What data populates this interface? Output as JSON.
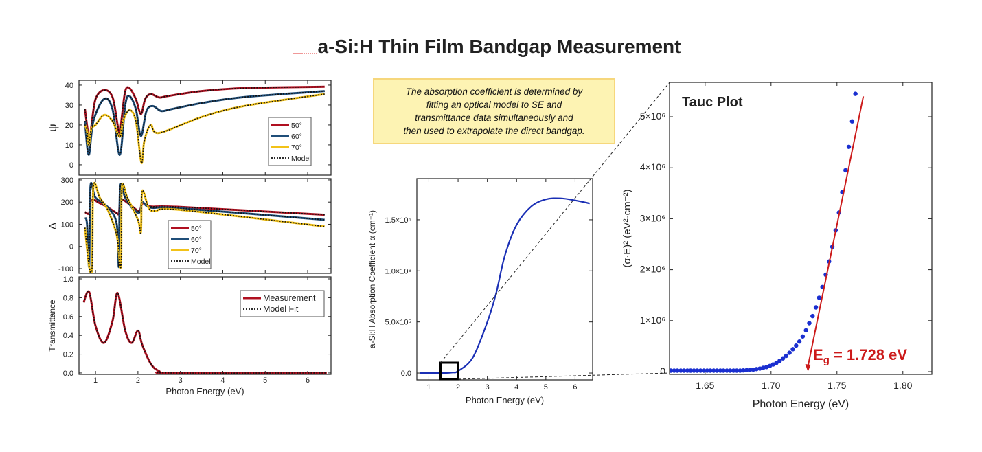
{
  "title": "a-Si:H Thin Film Bandgap Measurement",
  "note": [
    "The absorption coefficient is determined by",
    "fitting an optical model to SE and",
    "transmittance data simultaneously and",
    "then used to extrapolate the direct bandgap."
  ],
  "colors": {
    "c50": "#b01020",
    "c60": "#1f4e79",
    "c70": "#f2c218",
    "model": "#111111",
    "absorption": "#1a2fb5",
    "tauc_points": "#1a2fd0",
    "fit": "#cc1a1a",
    "note_bg": "#fdf3b3"
  },
  "chart_data": [
    {
      "type": "line",
      "title": "",
      "ylabel": "ψ",
      "xlabel": "",
      "xlim": [
        0.61,
        6.55
      ],
      "ylim": [
        -5.2,
        42.4
      ],
      "yticks": [
        "0",
        "10",
        "20",
        "30",
        "40"
      ],
      "ytick_values": [
        0,
        10,
        20,
        30,
        40
      ],
      "legend": [
        "50°",
        "60°",
        "70°",
        "Model"
      ],
      "legend_position": "right",
      "series": [
        {
          "name": "50°",
          "color": "c50",
          "x": [
            0.75,
            0.85,
            0.9,
            1.0,
            1.2,
            1.4,
            1.52,
            1.57,
            1.62,
            1.7,
            1.8,
            1.95,
            2.07,
            2.17,
            2.3,
            2.5,
            2.7,
            3.5,
            4.5,
            6.4
          ],
          "y": [
            28,
            13,
            19,
            33,
            37.5,
            34,
            20,
            15,
            24,
            37,
            38.5,
            33,
            25.5,
            33,
            35.5,
            33.8,
            34.5,
            37,
            38.5,
            39.2
          ]
        },
        {
          "name": "60°",
          "color": "c60",
          "x": [
            0.75,
            0.84,
            0.95,
            1.2,
            1.4,
            1.57,
            1.7,
            1.8,
            1.95,
            2.07,
            2.2,
            2.35,
            2.55,
            2.8,
            3.5,
            4.5,
            6.4
          ],
          "y": [
            22,
            5,
            22,
            33,
            28,
            5,
            30,
            34.5,
            28,
            14.5,
            27,
            29.5,
            27,
            28,
            31,
            34,
            37
          ]
        },
        {
          "name": "70°",
          "color": "c70",
          "x": [
            0.75,
            0.8,
            0.84,
            0.9,
            1.0,
            1.2,
            1.4,
            1.57,
            1.65,
            1.8,
            1.95,
            2.08,
            2.15,
            2.3,
            2.5,
            3.5,
            4.5,
            6.4
          ],
          "y": [
            20,
            17,
            10,
            18,
            20,
            25,
            22,
            14,
            22,
            27.5,
            22,
            1,
            12,
            20,
            16,
            24,
            29.5,
            35.5
          ]
        }
      ]
    },
    {
      "type": "line",
      "title": "",
      "ylabel": "Δ",
      "xlabel": "",
      "xlim": [
        0.61,
        6.55
      ],
      "ylim": [
        -121.7,
        306
      ],
      "yticks": [
        "-100",
        "0",
        "100",
        "200",
        "300"
      ],
      "ytick_values": [
        -100,
        0,
        100,
        200,
        300
      ],
      "legend": [
        "50°",
        "60°",
        "70°",
        "Model"
      ],
      "legend_position": "center",
      "series": [
        {
          "name": "50°",
          "color": "c50",
          "x": [
            0.75,
            0.85,
            0.9,
            1.1,
            1.3,
            1.5,
            1.55,
            1.6,
            1.8,
            2.0,
            2.05,
            2.12,
            2.3,
            3.0,
            6.4
          ],
          "y": [
            155,
            150,
            210,
            195,
            175,
            150,
            150,
            210,
            190,
            160,
            165,
            195,
            180,
            178,
            143
          ]
        },
        {
          "name": "60°",
          "color": "c60",
          "x": [
            0.75,
            0.8,
            0.85,
            0.88,
            1.0,
            1.3,
            1.5,
            1.55,
            1.58,
            1.7,
            1.9,
            2.05,
            2.1,
            2.3,
            3.0,
            6.4
          ],
          "y": [
            130,
            100,
            -90,
            270,
            220,
            175,
            100,
            -90,
            265,
            220,
            165,
            155,
            200,
            175,
            172,
            120
          ]
        },
        {
          "name": "70°",
          "color": "c70",
          "x": [
            0.75,
            0.85,
            0.92,
            0.95,
            1.1,
            1.3,
            1.5,
            1.6,
            1.62,
            1.75,
            2.0,
            2.07,
            2.1,
            2.25,
            2.4,
            3.0,
            6.4
          ],
          "y": [
            85,
            -90,
            -90,
            270,
            220,
            160,
            50,
            -90,
            265,
            220,
            120,
            65,
            250,
            175,
            160,
            165,
            90
          ]
        }
      ]
    },
    {
      "type": "line",
      "title": "",
      "ylabel": "Transmittance",
      "xlabel": "Photon Energy (eV)",
      "xlim": [
        0.61,
        6.55
      ],
      "ylim": [
        -0.015,
        1.022
      ],
      "xticks": [
        "1",
        "2",
        "3",
        "4",
        "5",
        "6"
      ],
      "xtick_values": [
        1,
        2,
        3,
        4,
        5,
        6
      ],
      "yticks": [
        "0.0",
        "0.2",
        "0.4",
        "0.6",
        "0.8",
        "1.0"
      ],
      "ytick_values": [
        0,
        0.2,
        0.4,
        0.6,
        0.8,
        1.0
      ],
      "legend": [
        "Measurement",
        "Model Fit"
      ],
      "legend_position": "top-right",
      "series": [
        {
          "name": "Measurement",
          "color": "c50",
          "x": [
            0.72,
            0.85,
            1.0,
            1.2,
            1.4,
            1.52,
            1.7,
            1.85,
            2.0,
            2.1,
            2.3,
            2.5,
            2.8,
            6.45
          ],
          "y": [
            0.75,
            0.86,
            0.5,
            0.32,
            0.55,
            0.85,
            0.45,
            0.32,
            0.45,
            0.3,
            0.1,
            0.02,
            0,
            0
          ]
        }
      ]
    },
    {
      "type": "line",
      "title": "",
      "ylabel": "a-Si:H Absorption Coefficient α (cm⁻¹)",
      "xlabel": "Photon Energy (eV)",
      "xlim": [
        0.59,
        6.6
      ],
      "ylim": [
        -67000,
        1903000
      ],
      "xticks": [
        "1",
        "2",
        "3",
        "4",
        "5",
        "6"
      ],
      "xtick_values": [
        1,
        2,
        3,
        4,
        5,
        6
      ],
      "yticks": [
        "0.0",
        "5.0×10⁵",
        "1.0×10⁶",
        "1.5×10⁶"
      ],
      "ytick_values": [
        0,
        500000,
        1000000,
        1500000
      ],
      "zoom_box": {
        "xlim": [
          1.4,
          2.0
        ]
      },
      "series": [
        {
          "name": "absorption",
          "color": "absorption",
          "x": [
            0.7,
            1.5,
            1.8,
            2.0,
            2.5,
            3.0,
            3.3,
            3.6,
            4.0,
            4.5,
            5.0,
            5.5,
            6.0,
            6.5
          ],
          "y": [
            0,
            0,
            5000,
            20000,
            150000,
            500000,
            780000,
            1150000,
            1450000,
            1630000,
            1700000,
            1710000,
            1690000,
            1660000
          ]
        }
      ]
    },
    {
      "type": "scatter",
      "title": "Tauc Plot",
      "ylabel": "(α·E)² (eV²·cm⁻²)",
      "xlabel": "Photon Energy (eV)",
      "xlim": [
        1.623,
        1.822
      ],
      "ylim": [
        -54000,
        5674000
      ],
      "xticks": [
        "1.65",
        "1.70",
        "1.75",
        "1.80"
      ],
      "xtick_values": [
        1.65,
        1.7,
        1.75,
        1.8
      ],
      "yticks": [
        "0",
        "1×10⁶",
        "2×10⁶",
        "3×10⁶",
        "4×10⁶",
        "5×10⁶"
      ],
      "ytick_values": [
        0,
        1000000,
        2000000,
        3000000,
        4000000,
        5000000
      ],
      "points": {
        "x_start": 1.6215,
        "x_step": 0.0025,
        "y_millions": [
          0.02,
          0.02,
          0.02,
          0.02,
          0.02,
          0.02,
          0.02,
          0.02,
          0.02,
          0.02,
          0.02,
          0.02,
          0.02,
          0.02,
          0.02,
          0.02,
          0.02,
          0.02,
          0.02,
          0.02,
          0.02,
          0.02,
          0.02,
          0.025,
          0.03,
          0.035,
          0.04,
          0.05,
          0.06,
          0.075,
          0.09,
          0.11,
          0.14,
          0.17,
          0.21,
          0.26,
          0.31,
          0.37,
          0.44,
          0.51,
          0.59,
          0.69,
          0.81,
          0.95,
          1.09,
          1.26,
          1.45,
          1.66,
          1.9,
          2.16,
          2.45,
          2.77,
          3.12,
          3.52,
          3.95,
          4.41,
          4.91,
          5.45
        ]
      },
      "fit_line": {
        "x": [
          1.77,
          1.728
        ],
        "y": [
          5400000,
          0
        ]
      },
      "annotation": {
        "label": "E",
        "subscript": "g",
        "value_text": " = 1.728 eV",
        "bandgap_eV": 1.728
      }
    }
  ]
}
